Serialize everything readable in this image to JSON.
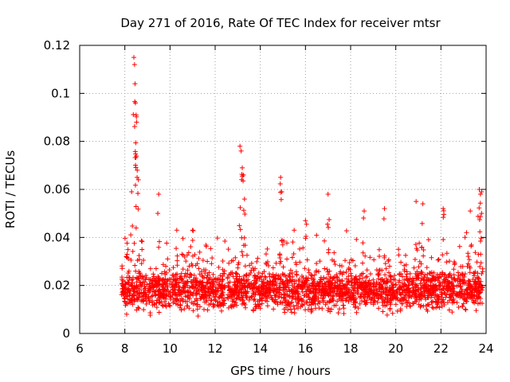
{
  "chart_data": {
    "type": "scatter",
    "title": "Day 271 of 2016, Rate Of TEC Index for receiver mtsr",
    "xlabel": "GPS time / hours",
    "ylabel": "ROTI / TECUs",
    "xlim": [
      6,
      24
    ],
    "ylim": [
      0,
      0.12
    ],
    "xticks": [
      6,
      8,
      10,
      12,
      14,
      16,
      18,
      20,
      22,
      24
    ],
    "yticks": [
      0,
      0.02,
      0.04,
      0.06,
      0.08,
      0.1,
      0.12
    ],
    "xtick_labels": [
      "6",
      "8",
      "10",
      "12",
      "14",
      "16",
      "18",
      "20",
      "22",
      "24"
    ],
    "ytick_labels": [
      "0",
      "0.02",
      "0.04",
      "0.06",
      "0.08",
      "0.1",
      "0.12"
    ],
    "grid": true,
    "marker": "+",
    "color": "#ff0000",
    "series": [
      {
        "name": "mtsr",
        "x_start": 7.85,
        "x_end": 23.85,
        "baseline_mean": 0.018,
        "baseline_spread": 0.008,
        "data_gap": [
          12.45,
          12.55
        ],
        "peaks": [
          {
            "x": 8.1,
            "y": 0.033
          },
          {
            "x": 8.3,
            "y": 0.059
          },
          {
            "x": 8.4,
            "y": 0.115
          },
          {
            "x": 8.43,
            "y": 0.112
          },
          {
            "x": 8.45,
            "y": 0.104
          },
          {
            "x": 8.47,
            "y": 0.096
          },
          {
            "x": 8.5,
            "y": 0.091
          },
          {
            "x": 8.52,
            "y": 0.088
          },
          {
            "x": 8.55,
            "y": 0.068
          },
          {
            "x": 8.6,
            "y": 0.064
          },
          {
            "x": 9.5,
            "y": 0.058
          },
          {
            "x": 10.3,
            "y": 0.043
          },
          {
            "x": 11.0,
            "y": 0.043
          },
          {
            "x": 13.1,
            "y": 0.078
          },
          {
            "x": 13.15,
            "y": 0.076
          },
          {
            "x": 13.2,
            "y": 0.069
          },
          {
            "x": 13.25,
            "y": 0.066
          },
          {
            "x": 13.3,
            "y": 0.056
          },
          {
            "x": 14.9,
            "y": 0.065
          },
          {
            "x": 14.95,
            "y": 0.059
          },
          {
            "x": 15.5,
            "y": 0.043
          },
          {
            "x": 16.0,
            "y": 0.047
          },
          {
            "x": 17.0,
            "y": 0.058
          },
          {
            "x": 18.6,
            "y": 0.051
          },
          {
            "x": 19.5,
            "y": 0.052
          },
          {
            "x": 20.9,
            "y": 0.055
          },
          {
            "x": 21.2,
            "y": 0.054
          },
          {
            "x": 22.1,
            "y": 0.052
          },
          {
            "x": 23.3,
            "y": 0.051
          },
          {
            "x": 23.7,
            "y": 0.06
          },
          {
            "x": 23.75,
            "y": 0.058
          },
          {
            "x": 23.8,
            "y": 0.059
          }
        ]
      }
    ]
  }
}
